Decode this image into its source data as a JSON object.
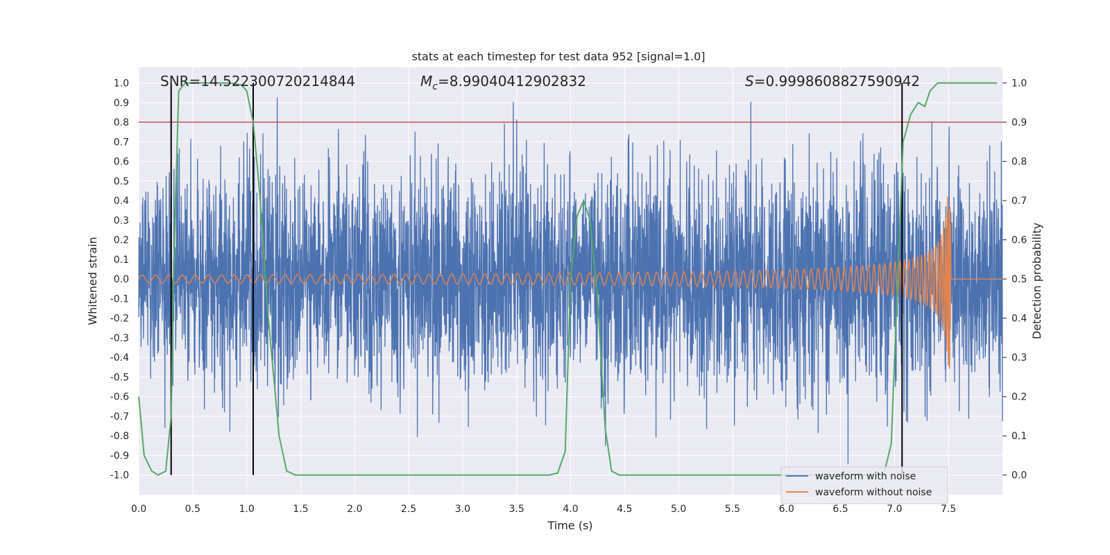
{
  "chart_data": {
    "type": "line",
    "title": "stats at each timestep for test data 952 [signal=1.0]",
    "xlabel": "Time (s)",
    "ylabel": "Whitened strain",
    "y2label": "Detection probability",
    "xlim": [
      0.0,
      8.0
    ],
    "ylim": [
      -1.1,
      1.08
    ],
    "y2lim": [
      -0.05,
      1.04
    ],
    "xticks": [
      "0.0",
      "0.5",
      "1.0",
      "1.5",
      "2.0",
      "2.5",
      "3.0",
      "3.5",
      "4.0",
      "4.5",
      "5.0",
      "5.5",
      "6.0",
      "6.5",
      "7.0",
      "7.5"
    ],
    "yticks": [
      "1.0",
      "0.9",
      "0.8",
      "0.7",
      "0.6",
      "0.5",
      "0.4",
      "0.3",
      "0.2",
      "0.1",
      "0.0",
      "-0.1",
      "-0.2",
      "-0.3",
      "-0.4",
      "-0.5",
      "-0.6",
      "-0.7",
      "-0.8",
      "-0.9",
      "-1.0"
    ],
    "y2ticks": [
      "1.0",
      "0.9",
      "0.8",
      "0.7",
      "0.6",
      "0.5",
      "0.4",
      "0.3",
      "0.2",
      "0.1",
      "0.0"
    ],
    "annotations": {
      "snr": "SNR=14.522300720214844",
      "mc_symbol": "M",
      "mc_sub": "c",
      "mc_value": "=8.99040412902832",
      "s_symbol": "S",
      "s_value": "=0.9998608827590942"
    },
    "threshold": {
      "value": 0.9,
      "axis": "y2",
      "color": "#c44e52"
    },
    "vlines": [
      0.3,
      1.06,
      7.07
    ],
    "legend": {
      "placement": "lower-right",
      "entries": [
        {
          "label": "waveform with noise",
          "color": "#4c72b0"
        },
        {
          "label": "waveform without noise",
          "color": "#dd8452"
        }
      ]
    },
    "series": [
      {
        "name": "waveform with noise",
        "axis": "y1",
        "color": "#4c72b0",
        "kind": "noise",
        "std": 0.28,
        "seed": 952
      },
      {
        "name": "waveform without noise",
        "axis": "y1",
        "color": "#dd8452",
        "kind": "chirp",
        "coalescence_time": 7.52,
        "amp_start": 0.02,
        "peak_amp": 0.39,
        "min_amp": -0.56
      },
      {
        "name": "detection probability",
        "axis": "y2",
        "color": "#55a868",
        "x": [
          0.0,
          0.05,
          0.12,
          0.18,
          0.25,
          0.3,
          0.33,
          0.37,
          0.43,
          0.55,
          0.7,
          0.85,
          0.95,
          1.0,
          1.06,
          1.12,
          1.2,
          1.3,
          1.37,
          1.45,
          3.7,
          3.8,
          3.88,
          3.95,
          4.0,
          4.06,
          4.12,
          4.18,
          4.25,
          4.32,
          4.38,
          4.45,
          4.52,
          6.9,
          6.97,
          7.03,
          7.08,
          7.15,
          7.22,
          7.28,
          7.33,
          7.4,
          7.6,
          7.75,
          7.95
        ],
        "y": [
          0.2,
          0.05,
          0.01,
          0.0,
          0.01,
          0.15,
          0.6,
          0.98,
          1.0,
          1.0,
          1.0,
          1.0,
          0.995,
          0.98,
          0.9,
          0.72,
          0.4,
          0.1,
          0.01,
          0.0,
          0.0,
          0.0,
          0.005,
          0.06,
          0.5,
          0.66,
          0.7,
          0.65,
          0.45,
          0.12,
          0.01,
          0.0,
          0.0,
          0.0,
          0.08,
          0.5,
          0.85,
          0.92,
          0.95,
          0.94,
          0.98,
          1.0,
          1.0,
          1.0,
          1.0
        ]
      }
    ]
  }
}
